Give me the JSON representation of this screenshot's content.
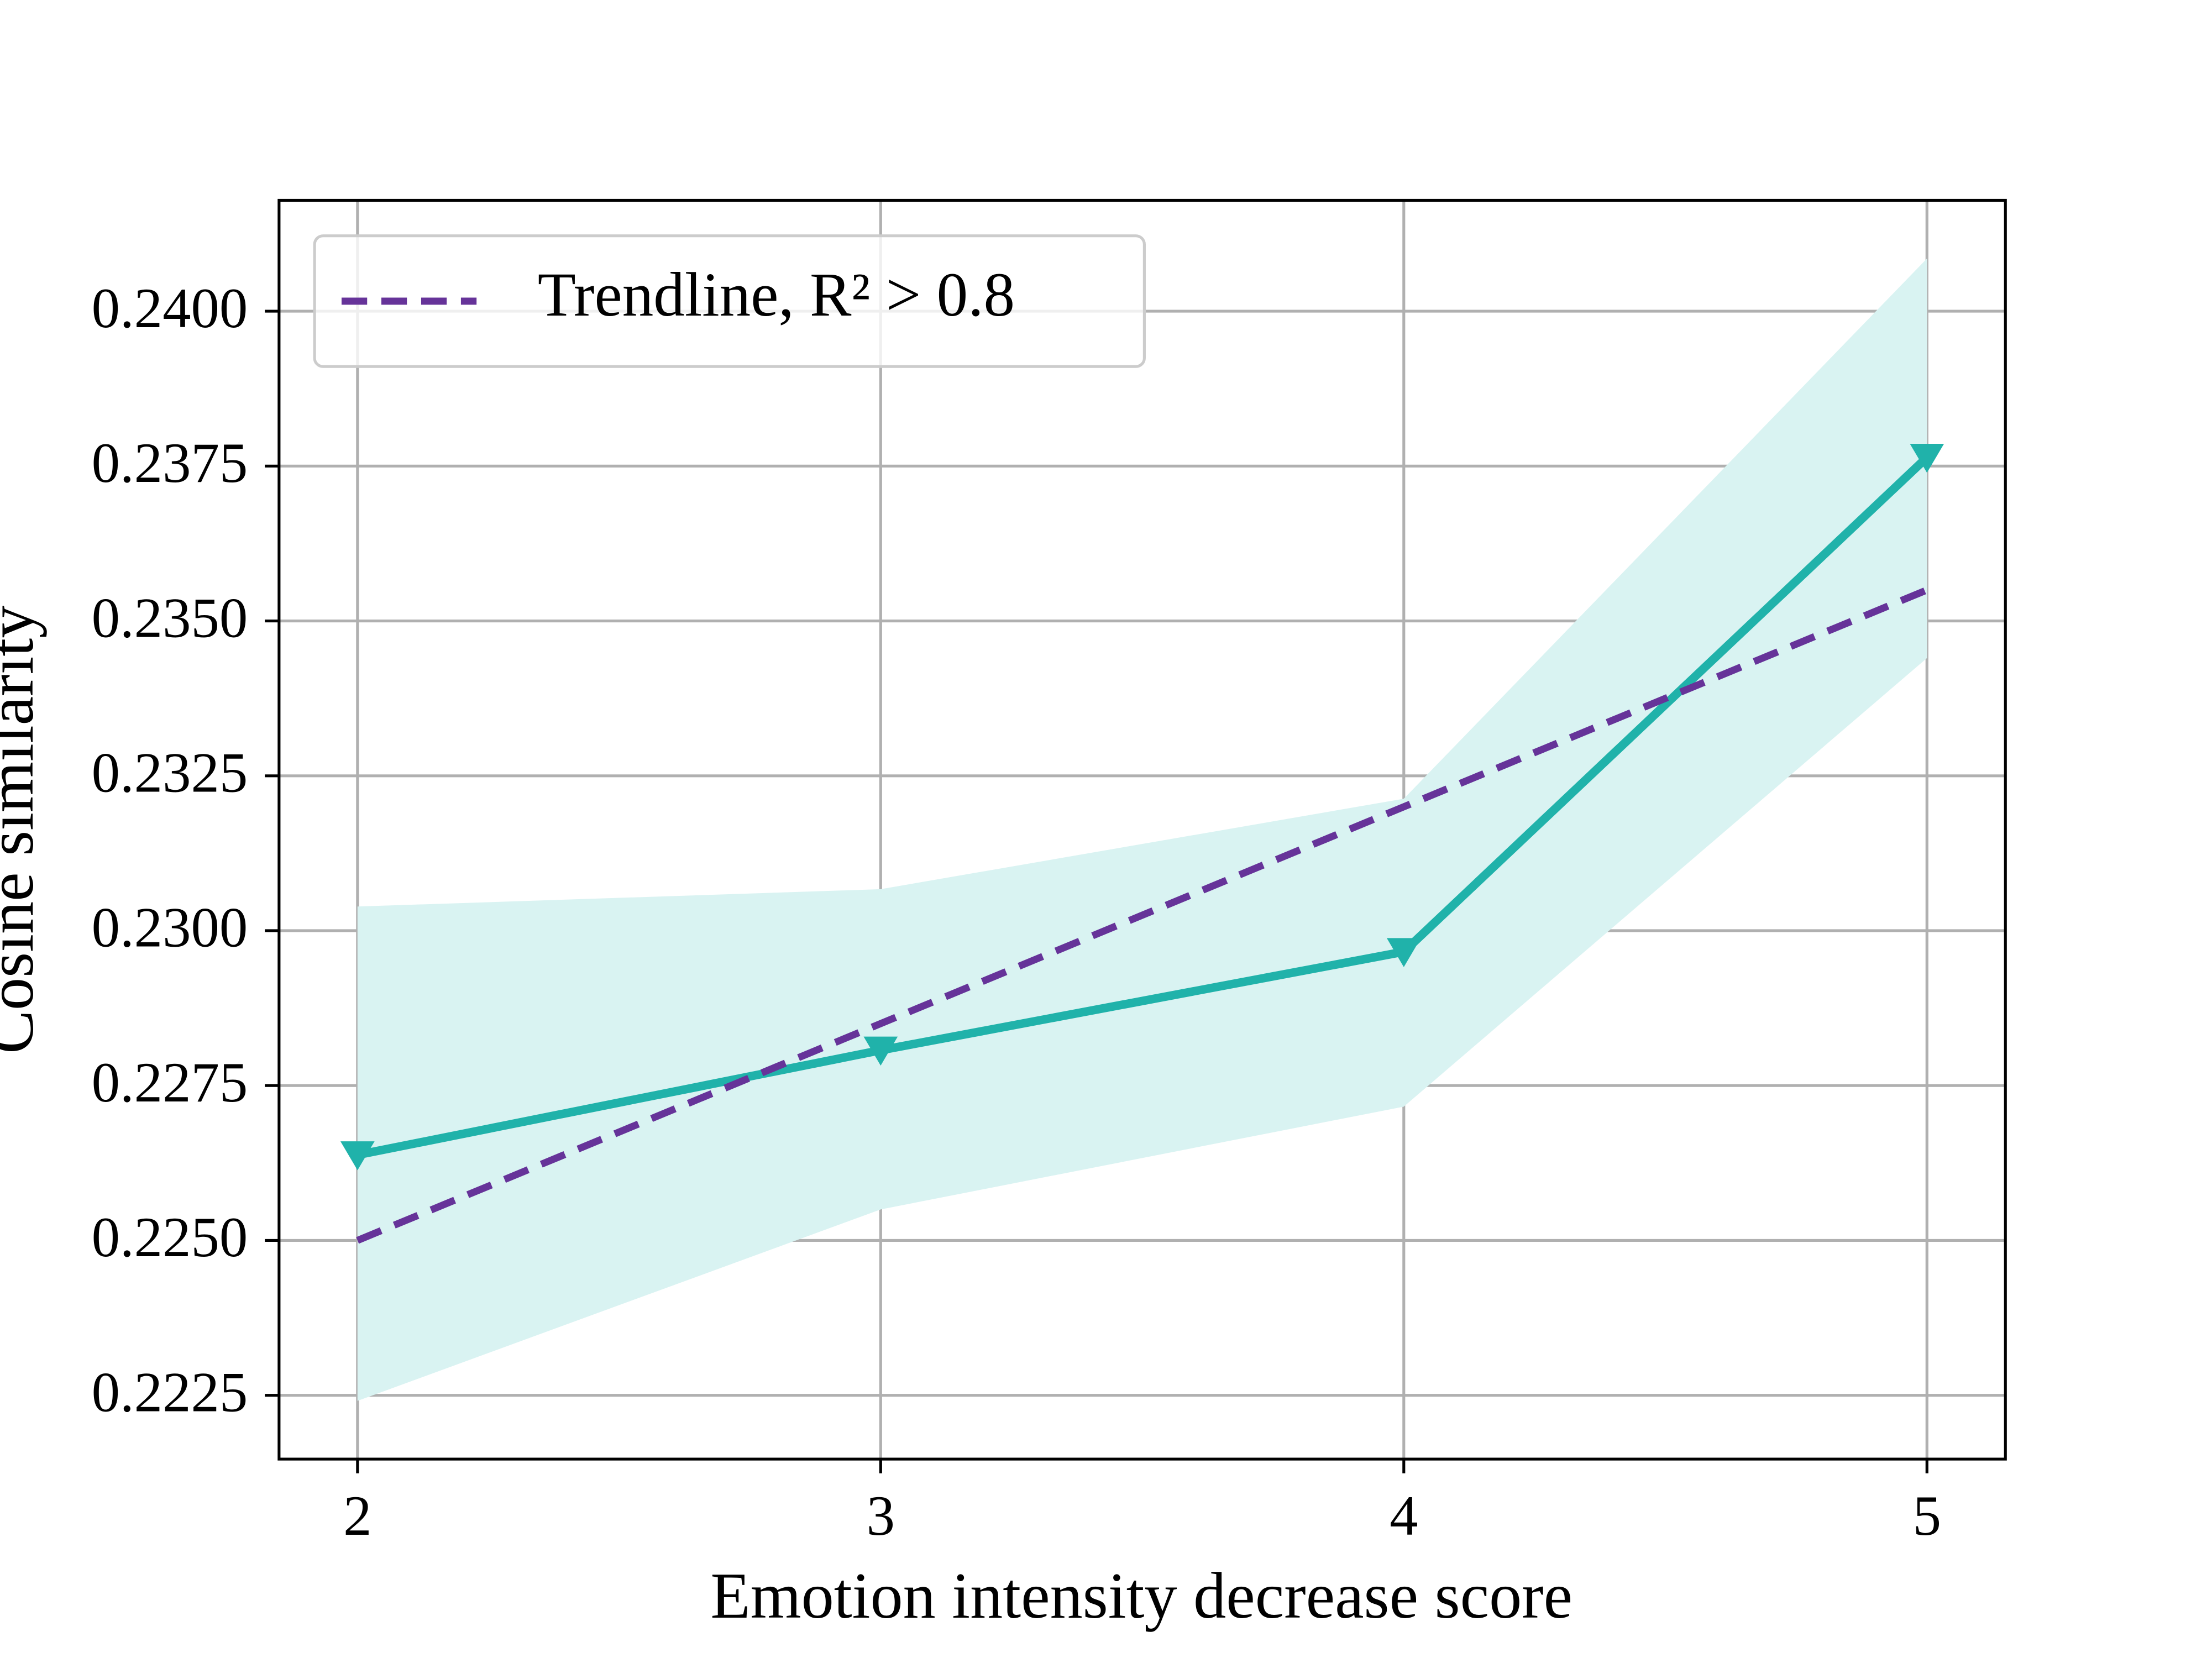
{
  "chart_data": {
    "type": "line",
    "xlabel": "Emotion intensity decrease score",
    "ylabel": "Cosine similarity",
    "x": [
      2,
      3,
      4,
      5
    ],
    "series": [
      {
        "color": "#20b2aa",
        "values": [
          0.22638,
          0.22807,
          0.22966,
          0.23764
        ],
        "marker": "triangle-down"
      },
      {
        "name": "Trendline, R² > 0.8",
        "color": "#663399",
        "values": [
          0.225,
          null,
          null,
          0.2355
        ],
        "dashed": true
      }
    ],
    "band": {
      "color": "#d9f3f2",
      "upper": [
        0.23039,
        0.23067,
        0.23213,
        0.24085
      ],
      "lower": [
        0.22241,
        0.2255,
        0.22716,
        0.2344
      ]
    },
    "xlim": [
      1.85,
      5.15
    ],
    "ylim": [
      0.22147,
      0.24179
    ],
    "xticks": [
      2,
      3,
      4,
      5
    ],
    "yticks": [
      {
        "value": 0.2225,
        "label": "0.2225"
      },
      {
        "value": 0.225,
        "label": "0.2250"
      },
      {
        "value": 0.2275,
        "label": "0.2275"
      },
      {
        "value": 0.23,
        "label": "0.2300"
      },
      {
        "value": 0.2325,
        "label": "0.2325"
      },
      {
        "value": 0.235,
        "label": "0.2350"
      },
      {
        "value": 0.2375,
        "label": "0.2375"
      },
      {
        "value": 0.24,
        "label": "0.2400"
      }
    ],
    "grid": true,
    "legend": "upper left"
  }
}
